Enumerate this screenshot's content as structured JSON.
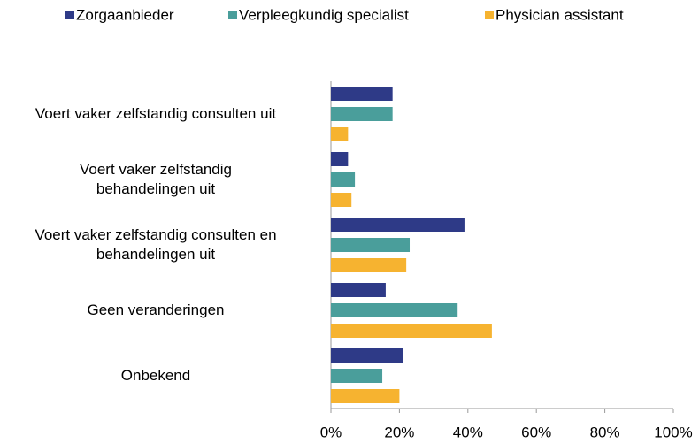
{
  "chart_data": {
    "type": "barh",
    "categories": [
      "Voert vaker zelfstandig consulten uit",
      "Voert vaker zelfstandig\nbehandelingen uit",
      "Voert vaker zelfstandig consulten en\nbehandelingen uit",
      "Geen veranderingen",
      "Onbekend"
    ],
    "series": [
      {
        "name": "Zorgaanbieder",
        "color": "#2e3a87",
        "values": [
          18,
          5,
          39,
          16,
          21
        ]
      },
      {
        "name": "Verpleegkundig specialist",
        "color": "#4a9e9b",
        "values": [
          18,
          7,
          23,
          37,
          15
        ]
      },
      {
        "name": "Physician assistant",
        "color": "#f6b330",
        "values": [
          5,
          6,
          22,
          47,
          20
        ]
      }
    ],
    "xlim": [
      0,
      100
    ],
    "xticks": [
      {
        "value": 0,
        "label": "0%"
      },
      {
        "value": 20,
        "label": "20%"
      },
      {
        "value": 40,
        "label": "40%"
      },
      {
        "value": 60,
        "label": "60%"
      },
      {
        "value": 80,
        "label": "80%"
      },
      {
        "value": 100,
        "label": "100%"
      }
    ],
    "legend": "top"
  }
}
